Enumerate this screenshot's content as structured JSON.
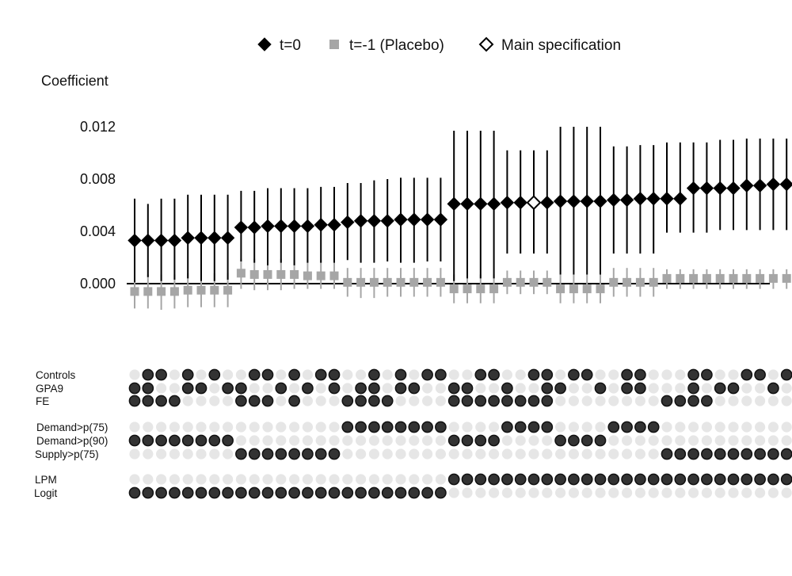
{
  "chart_data": {
    "type": "specification-curve",
    "ylabel": "Coefficient",
    "yticks": [
      "0.000",
      "0.004",
      "0.008",
      "0.012"
    ],
    "ylim": [
      -0.0022,
      0.013
    ],
    "legend": {
      "placement": "top",
      "entries": [
        {
          "label": "t=0",
          "marker": "filled-diamond",
          "color": "#000000"
        },
        {
          "label": "t=-1 (Placebo)",
          "marker": "square",
          "color": "#a6a6a6"
        },
        {
          "label": "Main specification",
          "marker": "open-diamond",
          "color": "#000000"
        }
      ]
    },
    "main_spec_index": 30,
    "series": [
      {
        "name": "t=0",
        "values": [
          0.0033,
          0.0033,
          0.0033,
          0.0033,
          0.0035,
          0.0035,
          0.0035,
          0.0035,
          0.0043,
          0.0043,
          0.0044,
          0.0044,
          0.0044,
          0.0044,
          0.0045,
          0.0045,
          0.0047,
          0.0048,
          0.0048,
          0.0048,
          0.0049,
          0.0049,
          0.0049,
          0.0049,
          0.0061,
          0.0061,
          0.0061,
          0.0061,
          0.0062,
          0.0062,
          0.0062,
          0.0062,
          0.0063,
          0.0063,
          0.0063,
          0.0063,
          0.0064,
          0.0064,
          0.0065,
          0.0065,
          0.0065,
          0.0065,
          0.0073,
          0.0073,
          0.0073,
          0.0073,
          0.0075,
          0.0075,
          0.0076,
          0.0076
        ],
        "ci_lower": [
          0.0001,
          0.0005,
          0.0002,
          0.0003,
          0.0004,
          0.0002,
          0.0002,
          0.0003,
          0.0017,
          0.0016,
          0.0014,
          0.0016,
          0.0014,
          0.0016,
          0.0016,
          0.0016,
          0.0018,
          0.0016,
          0.0016,
          0.0017,
          0.0016,
          0.0016,
          0.0017,
          0.0017,
          0.0002,
          0.0004,
          0.0004,
          0.0004,
          0.0023,
          0.0023,
          0.0023,
          0.0023,
          0.0007,
          0.0007,
          0.0007,
          0.0007,
          0.0023,
          0.0023,
          0.0023,
          0.0023,
          0.0039,
          0.0039,
          0.0039,
          0.0039,
          0.0041,
          0.0041,
          0.0041,
          0.0041,
          0.0041,
          0.0041
        ],
        "ci_upper": [
          0.0065,
          0.0061,
          0.0065,
          0.0065,
          0.0068,
          0.0068,
          0.0068,
          0.0068,
          0.0071,
          0.0071,
          0.0073,
          0.0073,
          0.0073,
          0.0073,
          0.0074,
          0.0074,
          0.0077,
          0.0077,
          0.0079,
          0.008,
          0.0081,
          0.0081,
          0.0081,
          0.0081,
          0.0117,
          0.0117,
          0.0117,
          0.0117,
          0.0102,
          0.0102,
          0.0102,
          0.0102,
          0.012,
          0.012,
          0.012,
          0.012,
          0.0105,
          0.0105,
          0.0106,
          0.0106,
          0.0108,
          0.0108,
          0.0108,
          0.0108,
          0.011,
          0.011,
          0.0111,
          0.0111,
          0.0111,
          0.0111
        ]
      },
      {
        "name": "t=-1 (Placebo)",
        "values": [
          -0.0006,
          -0.0006,
          -0.0006,
          -0.0006,
          -0.0005,
          -0.0005,
          -0.0005,
          -0.0005,
          0.0008,
          0.0007,
          0.0007,
          0.0007,
          0.0007,
          0.0006,
          0.0006,
          0.0006,
          0.0001,
          0.0001,
          0.0001,
          0.0001,
          0.0001,
          0.0001,
          0.0001,
          0.0001,
          -0.0004,
          -0.0004,
          -0.0004,
          -0.0004,
          0.0001,
          0.0001,
          0.0001,
          0.0001,
          -0.0004,
          -0.0004,
          -0.0004,
          -0.0004,
          0.0001,
          0.0001,
          0.0001,
          0.0001,
          0.0004,
          0.0004,
          0.0004,
          0.0004,
          0.0004,
          0.0004,
          0.0004,
          0.0004,
          0.0004,
          0.0004
        ],
        "ci_lower": [
          -0.0019,
          -0.0019,
          -0.002,
          -0.0019,
          -0.0018,
          -0.0018,
          -0.0018,
          -0.0018,
          -0.0004,
          -0.0005,
          -0.0005,
          -0.0005,
          -0.0004,
          -0.0004,
          -0.0004,
          -0.0004,
          -0.001,
          -0.0011,
          -0.0011,
          -0.001,
          -0.001,
          -0.001,
          -0.001,
          -0.001,
          -0.0015,
          -0.0015,
          -0.0015,
          -0.0015,
          -0.0008,
          -0.0008,
          -0.0008,
          -0.0008,
          -0.0015,
          -0.0015,
          -0.0015,
          -0.0015,
          -0.001,
          -0.001,
          -0.001,
          -0.001,
          -0.0004,
          -0.0004,
          -0.0004,
          -0.0004,
          -0.0004,
          -0.0004,
          -0.0004,
          -0.0004,
          -0.0004,
          -0.0004
        ],
        "ci_upper": [
          0.0007,
          0.0007,
          0.0007,
          0.0007,
          0.0008,
          0.0008,
          0.0008,
          0.0008,
          0.0019,
          0.0019,
          0.0022,
          0.0019,
          0.0018,
          0.0018,
          0.0018,
          0.0018,
          0.0012,
          0.0012,
          0.0012,
          0.0012,
          0.0012,
          0.0012,
          0.0012,
          0.0012,
          0.0007,
          0.0007,
          0.0007,
          0.0007,
          0.001,
          0.001,
          0.001,
          0.001,
          0.0007,
          0.0007,
          0.0007,
          0.0007,
          0.0012,
          0.0012,
          0.0012,
          0.0012,
          0.0011,
          0.0011,
          0.0011,
          0.0011,
          0.0011,
          0.0011,
          0.0011,
          0.0011,
          0.0011,
          0.0011
        ]
      }
    ],
    "indicator_rows": [
      {
        "label": "Controls",
        "group": 0,
        "values": "01101010011010110010101100110011011001100011001101"
      },
      {
        "label": "GPA9",
        "group": 0,
        "values": "11001101100101010110110011001001100101100010110010"
      },
      {
        "label": "FE",
        "group": 0,
        "values": "11110000111010001111000011111111000000001111000000"
      },
      {
        "label": "Demand>p(75)",
        "group": 1,
        "values": "00000000000000001111111100001111000011110000000000"
      },
      {
        "label": "Demand>p(90)",
        "group": 1,
        "values": "11111111000000000000000011110000111100000000000000"
      },
      {
        "label": "Supply>p(75)",
        "group": 1,
        "values": "00000000111111110000000000000000000000001111111111"
      },
      {
        "label": "LPM",
        "group": 2,
        "values": "00000000000000000000000011111111111111111111111111"
      },
      {
        "label": "Logit",
        "group": 2,
        "values": "11111111111111111111111100000000000000000000000000"
      }
    ],
    "colors": {
      "point": "#000000",
      "placebo": "#a6a6a6",
      "dot_on": "#333333",
      "dot_on_stroke": "#111111",
      "dot_off": "#e6e6e6"
    }
  }
}
